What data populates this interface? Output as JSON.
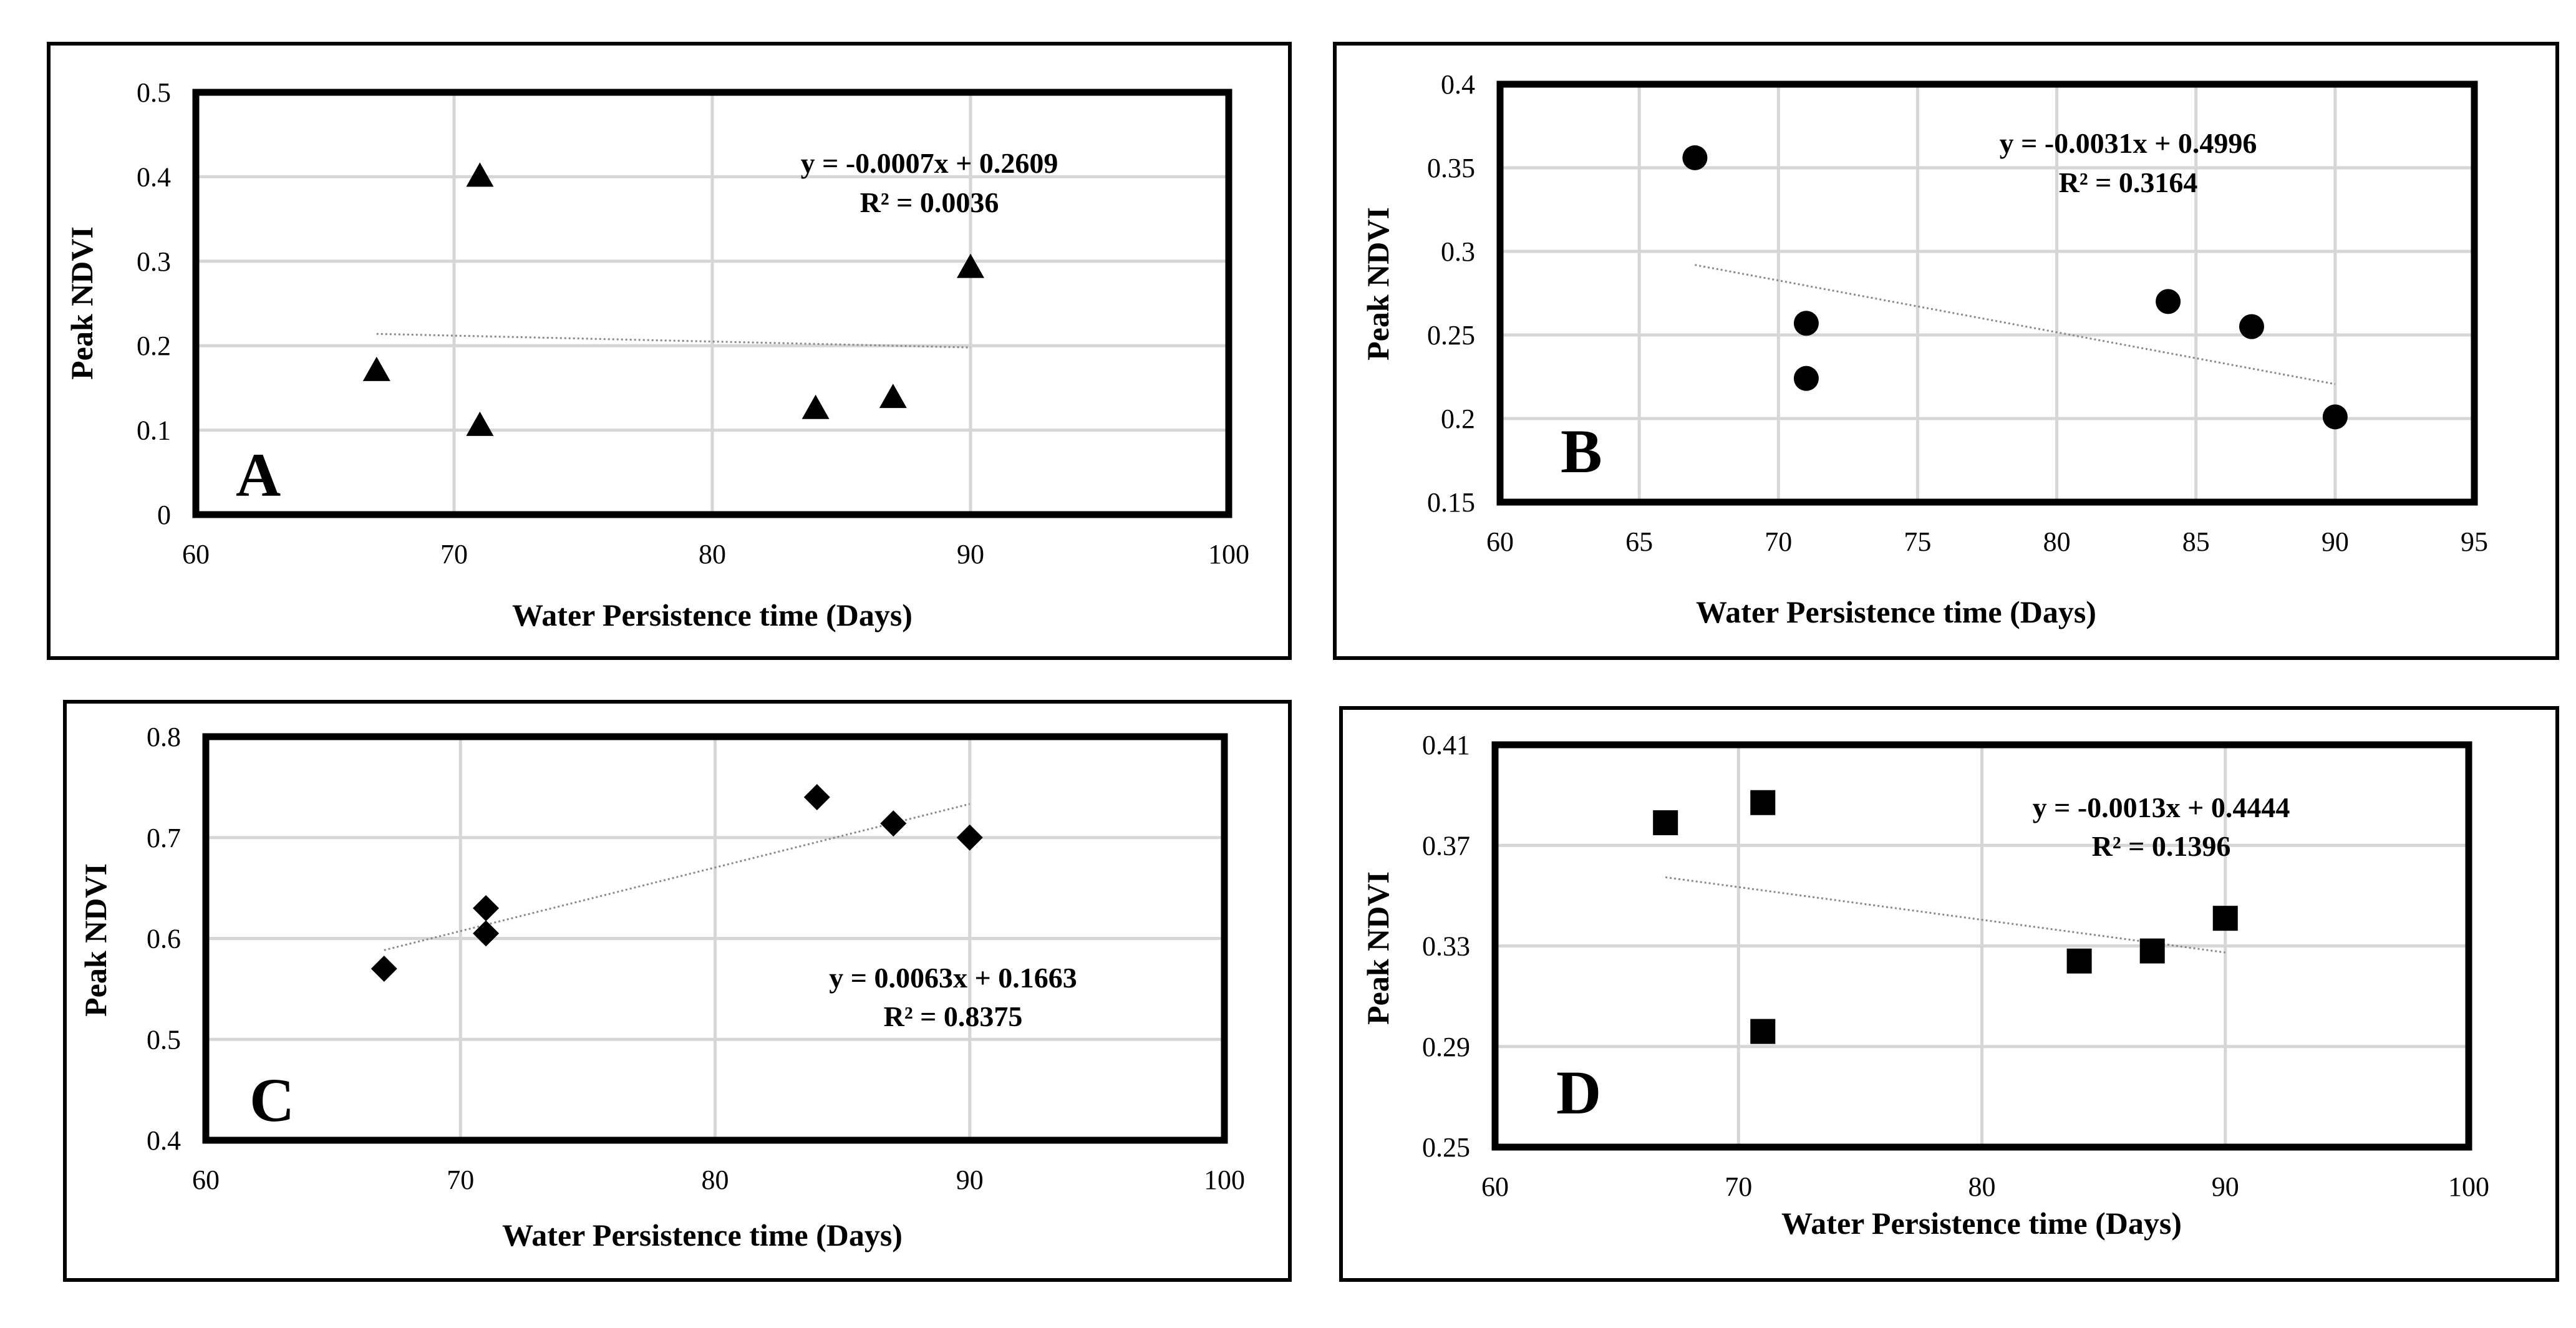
{
  "chart_data": [
    {
      "type": "scatter",
      "panel_label": "A",
      "marker": "triangle",
      "xlabel": "Water Persistence time (Days)",
      "ylabel": "Peak NDVI",
      "xlim": [
        60,
        100
      ],
      "ylim": [
        0,
        0.5
      ],
      "x_ticks": [
        60,
        70,
        80,
        90,
        100
      ],
      "y_ticks": [
        0,
        0.1,
        0.2,
        0.3,
        0.4,
        0.5
      ],
      "x_tick_labels": [
        "60",
        "70",
        "80",
        "90",
        "100"
      ],
      "y_tick_labels": [
        "0",
        "0.1",
        "0.2",
        "0.3",
        "0.4",
        "0.5"
      ],
      "points": [
        [
          67,
          0.17
        ],
        [
          71,
          0.4
        ],
        [
          71,
          0.105
        ],
        [
          84,
          0.125
        ],
        [
          87,
          0.138
        ],
        [
          90,
          0.292
        ]
      ],
      "trendline": {
        "slope": -0.0007,
        "intercept": 0.2609,
        "x_range": [
          67,
          90
        ]
      },
      "equation": "y = -0.0007x + 0.2609",
      "r_squared": "R² = 0.0036"
    },
    {
      "type": "scatter",
      "panel_label": "B",
      "marker": "circle",
      "xlabel": "Water Persistence time (Days)",
      "ylabel": "Peak NDVI",
      "xlim": [
        60,
        95
      ],
      "ylim": [
        0.15,
        0.4
      ],
      "x_ticks": [
        60,
        65,
        70,
        75,
        80,
        85,
        90,
        95
      ],
      "y_ticks": [
        0.15,
        0.2,
        0.25,
        0.3,
        0.35,
        0.4
      ],
      "x_tick_labels": [
        "60",
        "65",
        "70",
        "75",
        "80",
        "85",
        "90",
        "95"
      ],
      "y_tick_labels": [
        "0.15",
        "0.2",
        "0.25",
        "0.3",
        "0.35",
        "0.4"
      ],
      "points": [
        [
          67,
          0.356
        ],
        [
          71,
          0.257
        ],
        [
          71,
          0.224
        ],
        [
          84,
          0.27
        ],
        [
          87,
          0.255
        ],
        [
          90,
          0.201
        ]
      ],
      "trendline": {
        "slope": -0.0031,
        "intercept": 0.4996,
        "x_range": [
          67,
          90
        ]
      },
      "equation": "y = -0.0031x + 0.4996",
      "r_squared": "R² = 0.3164"
    },
    {
      "type": "scatter",
      "panel_label": "C",
      "marker": "diamond",
      "xlabel": "Water Persistence time (Days)",
      "ylabel": "Peak NDVI",
      "xlim": [
        60,
        100
      ],
      "ylim": [
        0.4,
        0.8
      ],
      "x_ticks": [
        60,
        70,
        80,
        90,
        100
      ],
      "y_ticks": [
        0.4,
        0.5,
        0.6,
        0.7,
        0.8
      ],
      "x_tick_labels": [
        "60",
        "70",
        "80",
        "90",
        "100"
      ],
      "y_tick_labels": [
        "0.4",
        "0.5",
        "0.6",
        "0.7",
        "0.8"
      ],
      "points": [
        [
          67,
          0.57
        ],
        [
          71,
          0.63
        ],
        [
          71,
          0.605
        ],
        [
          84,
          0.74
        ],
        [
          87,
          0.714
        ],
        [
          90,
          0.7
        ]
      ],
      "trendline": {
        "slope": 0.0063,
        "intercept": 0.1663,
        "x_range": [
          67,
          90
        ]
      },
      "equation": "y = 0.0063x + 0.1663",
      "r_squared": "R² = 0.8375"
    },
    {
      "type": "scatter",
      "panel_label": "D",
      "marker": "square",
      "xlabel": "Water Persistence time (Days)",
      "ylabel": "Peak NDVI",
      "xlim": [
        60,
        100
      ],
      "ylim": [
        0.25,
        0.41
      ],
      "x_ticks": [
        60,
        70,
        80,
        90,
        100
      ],
      "y_ticks": [
        0.25,
        0.29,
        0.33,
        0.37,
        0.41
      ],
      "x_tick_labels": [
        "60",
        "70",
        "80",
        "90",
        "100"
      ],
      "y_tick_labels": [
        "0.25",
        "0.29",
        "0.33",
        "0.37",
        "0.41"
      ],
      "points": [
        [
          67,
          0.379
        ],
        [
          71,
          0.387
        ],
        [
          71,
          0.296
        ],
        [
          84,
          0.324
        ],
        [
          87,
          0.328
        ],
        [
          90,
          0.341
        ]
      ],
      "trendline": {
        "slope": -0.0013,
        "intercept": 0.4444,
        "x_range": [
          67,
          90
        ]
      },
      "equation": "y = -0.0013x + 0.4444",
      "r_squared": "R² = 0.1396"
    }
  ]
}
